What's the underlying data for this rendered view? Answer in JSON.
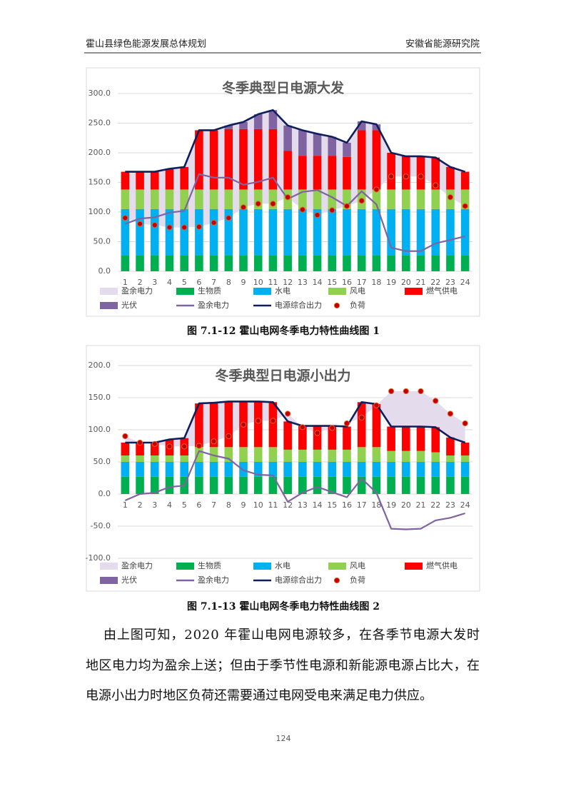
{
  "header": {
    "left": "霍山县绿色能源发展总体规划",
    "right": "安徽省能源研究院"
  },
  "chart_data": [
    {
      "type": "bar",
      "stacked": true,
      "title": "冬季典型日电源大发",
      "categories": [
        "1",
        "2",
        "3",
        "4",
        "5",
        "6",
        "7",
        "8",
        "9",
        "10",
        "11",
        "12",
        "13",
        "14",
        "15",
        "16",
        "17",
        "18",
        "19",
        "20",
        "21",
        "22",
        "23",
        "24"
      ],
      "ylim": [
        0,
        300
      ],
      "yticks": [
        {
          "value": 0,
          "label": "0.0"
        },
        {
          "value": 50,
          "label": "50.0"
        },
        {
          "value": 100,
          "label": "100.0"
        },
        {
          "value": 150,
          "label": "150.0"
        },
        {
          "value": 200,
          "label": "200.0"
        },
        {
          "value": 250,
          "label": "250.0"
        },
        {
          "value": 300,
          "label": "300.0"
        }
      ],
      "grid": true,
      "area": {
        "name": "盈余电力",
        "color": "#e4dcec"
      },
      "series": [
        {
          "name": "生物质",
          "color": "#00b050",
          "kind": "bar",
          "values": [
            27,
            27,
            27,
            27,
            27,
            27,
            27,
            27,
            27,
            27,
            27,
            27,
            27,
            27,
            27,
            27,
            27,
            27,
            27,
            27,
            27,
            27,
            27,
            27
          ]
        },
        {
          "name": "水电",
          "color": "#00b0f0",
          "kind": "bar",
          "values": [
            78,
            78,
            78,
            78,
            78,
            78,
            78,
            78,
            78,
            78,
            78,
            78,
            78,
            78,
            78,
            78,
            78,
            78,
            78,
            78,
            78,
            78,
            78,
            78
          ]
        },
        {
          "name": "风电",
          "color": "#92d050",
          "kind": "bar",
          "values": [
            33,
            33,
            33,
            33,
            33,
            33,
            33,
            33,
            33,
            33,
            33,
            33,
            33,
            33,
            33,
            33,
            33,
            33,
            33,
            33,
            33,
            33,
            33,
            33
          ]
        },
        {
          "name": "燃气供电",
          "color": "#ff0000",
          "kind": "bar",
          "values": [
            30,
            30,
            30,
            35,
            38,
            100,
            100,
            102,
            102,
            102,
            102,
            65,
            57,
            57,
            57,
            55,
            100,
            100,
            62,
            56,
            56,
            54,
            38,
            30
          ]
        },
        {
          "name": "光伏",
          "color": "#8064a2",
          "kind": "bar",
          "values": [
            0,
            0,
            0,
            0,
            0,
            0,
            0,
            6,
            12,
            25,
            32,
            43,
            43,
            37,
            32,
            24,
            15,
            10,
            0,
            0,
            0,
            0,
            0,
            0
          ]
        },
        {
          "name": "盈余电力",
          "color": "#8064a2",
          "kind": "line",
          "values": [
            80,
            89,
            91,
            99,
            102,
            164,
            158,
            158,
            146,
            151,
            158,
            122,
            134,
            137,
            125,
            110,
            135,
            113,
            40,
            34,
            34,
            47,
            53,
            59
          ]
        },
        {
          "name": "电源综合出力",
          "color": "#0f1f5c",
          "kind": "total",
          "values": [
            168,
            168,
            168,
            173,
            176,
            238,
            238,
            246,
            252,
            265,
            272,
            246,
            238,
            232,
            227,
            217,
            253,
            248,
            200,
            194,
            194,
            192,
            176,
            168
          ]
        },
        {
          "name": "负荷",
          "color": "#c00000",
          "kind": "scatter",
          "values": [
            90,
            80,
            78,
            74,
            74,
            75,
            82,
            90,
            108,
            114,
            114,
            125,
            104,
            95,
            103,
            110,
            119,
            138,
            160,
            160,
            160,
            145,
            125,
            110
          ]
        }
      ]
    },
    {
      "type": "bar",
      "stacked": true,
      "title": "冬季典型日电源小出力",
      "categories": [
        "1",
        "2",
        "3",
        "4",
        "5",
        "6",
        "7",
        "8",
        "9",
        "10",
        "11",
        "12",
        "13",
        "14",
        "15",
        "16",
        "17",
        "18",
        "19",
        "20",
        "21",
        "22",
        "23",
        "24"
      ],
      "ylim": [
        -100,
        200
      ],
      "yticks": [
        {
          "value": -100,
          "label": "-100.0"
        },
        {
          "value": -50,
          "label": "-50.0"
        },
        {
          "value": 0,
          "label": "0.0"
        },
        {
          "value": 50,
          "label": "50.0"
        },
        {
          "value": 100,
          "label": "100.0"
        },
        {
          "value": 150,
          "label": "150.0"
        },
        {
          "value": 200,
          "label": "200.0"
        }
      ],
      "grid": true,
      "area": {
        "name": "盈余电力",
        "color": "#e4dcec"
      },
      "series": [
        {
          "name": "生物质",
          "color": "#00b050",
          "kind": "bar",
          "values": [
            27,
            27,
            27,
            27,
            27,
            27,
            27,
            27,
            27,
            27,
            27,
            27,
            27,
            27,
            27,
            27,
            27,
            27,
            27,
            27,
            27,
            27,
            27,
            27
          ]
        },
        {
          "name": "水电",
          "color": "#00b0f0",
          "kind": "bar",
          "values": [
            23,
            23,
            23,
            23,
            23,
            23,
            23,
            23,
            23,
            23,
            23,
            23,
            23,
            23,
            23,
            23,
            23,
            23,
            23,
            23,
            23,
            23,
            23,
            23
          ]
        },
        {
          "name": "风电",
          "color": "#92d050",
          "kind": "bar",
          "values": [
            10,
            10,
            10,
            10,
            10,
            23,
            23,
            23,
            23,
            23,
            23,
            19,
            19,
            19,
            19,
            19,
            23,
            23,
            17,
            17,
            17,
            15,
            10,
            10
          ]
        },
        {
          "name": "燃气供电",
          "color": "#ff0000",
          "kind": "bar",
          "values": [
            20,
            20,
            20,
            25,
            27,
            68,
            69,
            71,
            71,
            71,
            70,
            44,
            37,
            37,
            37,
            36,
            70,
            67,
            38,
            38,
            38,
            39,
            28,
            20
          ]
        },
        {
          "name": "光伏",
          "color": "#8064a2",
          "kind": "bar",
          "values": [
            0,
            0,
            0,
            0,
            0,
            0,
            0,
            0,
            0,
            0,
            0,
            0,
            0,
            0,
            0,
            0,
            0,
            0,
            0,
            0,
            0,
            0,
            0,
            0
          ]
        },
        {
          "name": "盈余电力",
          "color": "#8064a2",
          "kind": "line",
          "values": [
            -10,
            0,
            2,
            11,
            13,
            67,
            60,
            55,
            37,
            30,
            29,
            -12,
            2,
            11,
            3,
            -5,
            24,
            2,
            -54,
            -55,
            -54,
            -41,
            -37,
            -30
          ]
        },
        {
          "name": "电源综合出力",
          "color": "#0f1f5c",
          "kind": "total",
          "values": [
            80,
            80,
            80,
            85,
            87,
            141,
            142,
            144,
            144,
            144,
            143,
            113,
            106,
            106,
            106,
            105,
            143,
            140,
            105,
            105,
            105,
            104,
            88,
            80
          ]
        },
        {
          "name": "负荷",
          "color": "#c00000",
          "kind": "scatter",
          "values": [
            90,
            80,
            78,
            74,
            74,
            75,
            82,
            90,
            108,
            114,
            114,
            125,
            104,
            95,
            103,
            110,
            119,
            138,
            160,
            160,
            160,
            145,
            125,
            110
          ]
        }
      ]
    }
  ],
  "captions": [
    "图 7.1-12    霍山电网冬季电力特性曲线图 1",
    "图 7.1-13    霍山电网冬季电力特性曲线图 2"
  ],
  "paragraph": [
    "由上图可知，2020 年霍山电网电源较多，在各季节电源大发时",
    "地区电力均为盈余上送；但由于季节性电源和新能源电源占比大，在",
    "电源小出力时地区负荷还需要通过电网受电来满足电力供应。"
  ],
  "page_number": "124"
}
